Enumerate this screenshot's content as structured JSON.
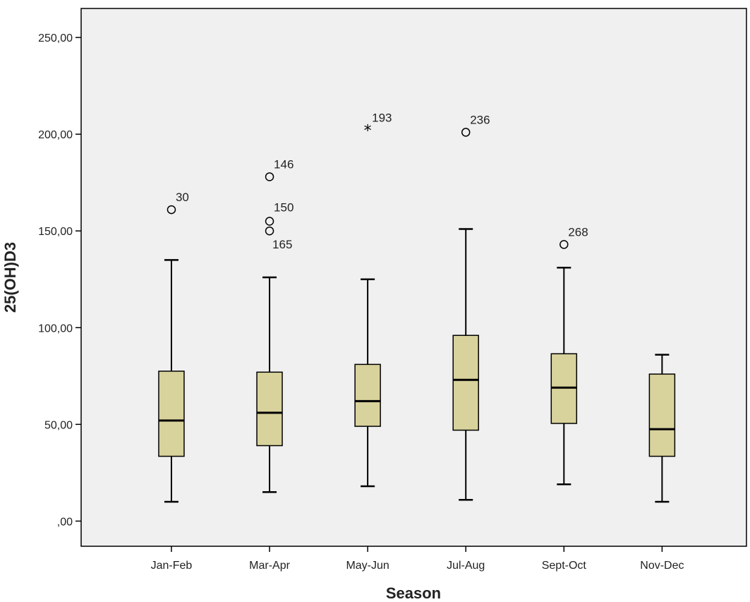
{
  "chart_data": {
    "type": "boxplot",
    "xlabel": "Season",
    "ylabel": "25(OH)D3",
    "ylim": [
      -13,
      265
    ],
    "yticks": [
      0,
      50,
      100,
      150,
      200,
      250
    ],
    "ytick_labels": [
      ",00",
      "50,00",
      "100,00",
      "150,00",
      "200,00",
      "250,00"
    ],
    "grid": false,
    "colors": {
      "box_fill": "#d8d29c",
      "plot_bg": "#f0f0f0",
      "stroke": "#000000"
    },
    "categories": [
      "Jan-Feb",
      "Mar-Apr",
      "May-Jun",
      "Jul-Aug",
      "Sept-Oct",
      "Nov-Dec"
    ],
    "boxes": [
      {
        "min": 10,
        "q1": 33.5,
        "median": 52,
        "q3": 77.5,
        "max": 135,
        "outliers": [
          {
            "value": 161,
            "label": "30",
            "marker": "circle"
          }
        ]
      },
      {
        "min": 15,
        "q1": 39,
        "median": 56,
        "q3": 77,
        "max": 126,
        "outliers": [
          {
            "value": 178,
            "label": "146",
            "marker": "circle"
          },
          {
            "value": 155,
            "label": "150",
            "marker": "circle"
          },
          {
            "value": 150,
            "label": "165",
            "marker": "circle"
          }
        ]
      },
      {
        "min": 18,
        "q1": 49,
        "median": 62,
        "q3": 81,
        "max": 125,
        "outliers": [
          {
            "value": 202,
            "label": "193",
            "marker": "star"
          }
        ]
      },
      {
        "min": 11,
        "q1": 47,
        "median": 73,
        "q3": 96,
        "max": 151,
        "outliers": [
          {
            "value": 201,
            "label": "236",
            "marker": "circle"
          }
        ]
      },
      {
        "min": 19,
        "q1": 50.5,
        "median": 69,
        "q3": 86.5,
        "max": 131,
        "outliers": [
          {
            "value": 143,
            "label": "268",
            "marker": "circle"
          }
        ]
      },
      {
        "min": 10,
        "q1": 33.5,
        "median": 47.5,
        "q3": 76,
        "max": 86,
        "outliers": []
      }
    ]
  }
}
